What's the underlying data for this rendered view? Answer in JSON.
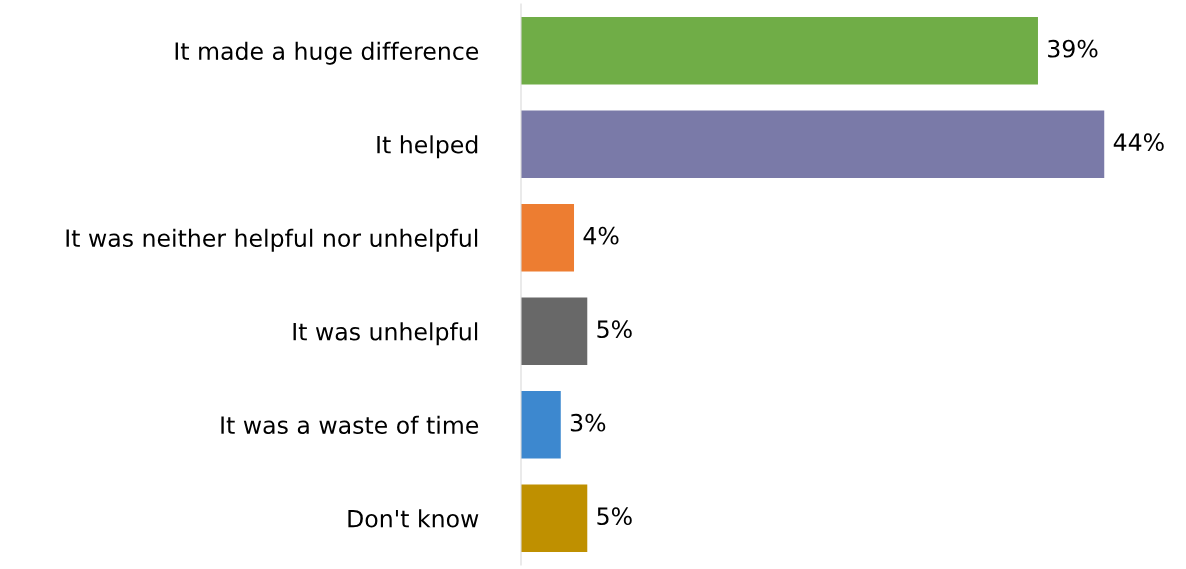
{
  "chart_data": {
    "type": "bar",
    "orientation": "horizontal",
    "categories": [
      "It made a huge difference",
      "It helped",
      "It was neither helpful nor unhelpful",
      "It was unhelpful",
      "It was a waste of time",
      "Don't know"
    ],
    "values": [
      39,
      44,
      4,
      5,
      3,
      5
    ],
    "colors": [
      "#70ad47",
      "#7a7aa8",
      "#ed7d31",
      "#686868",
      "#3d88cf",
      "#bf9000"
    ],
    "value_labels": [
      "39%",
      "44%",
      "4%",
      "5%",
      "3%",
      "5%"
    ],
    "grid": false,
    "legend": false
  }
}
